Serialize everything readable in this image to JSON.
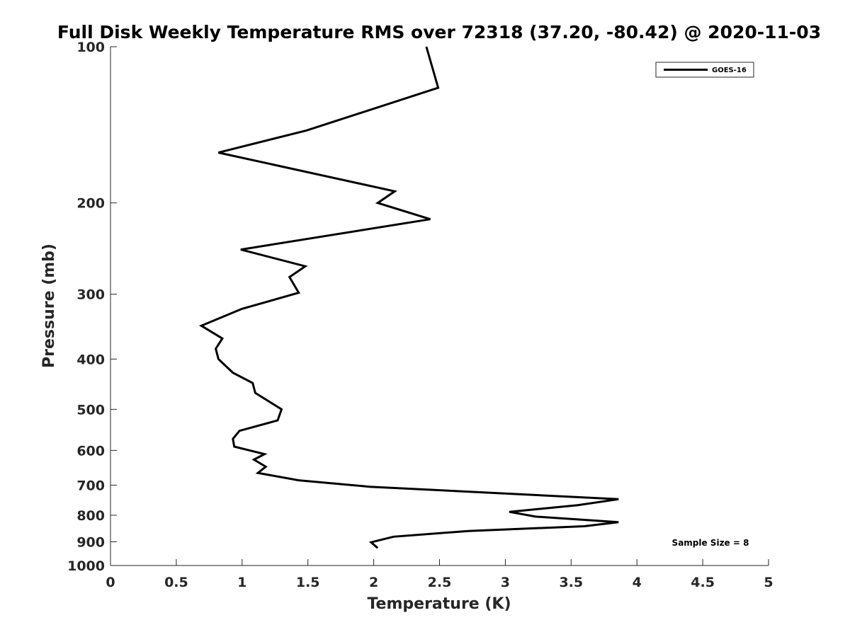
{
  "chart_data": {
    "type": "line",
    "title": "Full Disk Weekly Temperature RMS over 72318 (37.20, -80.42) @ 2020-11-03",
    "xlabel": "Temperature (K)",
    "ylabel": "Pressure (mb)",
    "xlim": [
      0,
      5
    ],
    "ylim": [
      100,
      1000
    ],
    "y_scale": "log",
    "y_reversed": true,
    "x_ticks": [
      0,
      0.5,
      1,
      1.5,
      2,
      2.5,
      3,
      3.5,
      4,
      4.5,
      5
    ],
    "x_tick_labels": [
      "0",
      "0.5",
      "1",
      "1.5",
      "2",
      "2.5",
      "3",
      "3.5",
      "4",
      "4.5",
      "5"
    ],
    "y_ticks": [
      100,
      200,
      300,
      400,
      500,
      600,
      700,
      800,
      900,
      1000
    ],
    "y_tick_labels": [
      "100",
      "200",
      "300",
      "400",
      "500",
      "600",
      "700",
      "800",
      "900",
      "1000"
    ],
    "grid": false,
    "legend_position": "top-right",
    "annotation": "Sample Size = 8",
    "series": [
      {
        "name": "GOES-16",
        "color": "#000000",
        "points": [
          {
            "x": 2.4,
            "p": 100
          },
          {
            "x": 2.49,
            "p": 120
          },
          {
            "x": 1.49,
            "p": 145
          },
          {
            "x": 0.82,
            "p": 160
          },
          {
            "x": 2.16,
            "p": 190
          },
          {
            "x": 2.03,
            "p": 200
          },
          {
            "x": 2.43,
            "p": 215
          },
          {
            "x": 0.99,
            "p": 246
          },
          {
            "x": 1.48,
            "p": 265
          },
          {
            "x": 1.36,
            "p": 278
          },
          {
            "x": 1.43,
            "p": 298
          },
          {
            "x": 1.0,
            "p": 320
          },
          {
            "x": 0.69,
            "p": 345
          },
          {
            "x": 0.85,
            "p": 365
          },
          {
            "x": 0.8,
            "p": 382
          },
          {
            "x": 0.82,
            "p": 400
          },
          {
            "x": 0.93,
            "p": 425
          },
          {
            "x": 1.08,
            "p": 445
          },
          {
            "x": 1.1,
            "p": 465
          },
          {
            "x": 1.3,
            "p": 500
          },
          {
            "x": 1.27,
            "p": 525
          },
          {
            "x": 0.98,
            "p": 550
          },
          {
            "x": 0.93,
            "p": 570
          },
          {
            "x": 0.94,
            "p": 590
          },
          {
            "x": 1.17,
            "p": 610
          },
          {
            "x": 1.09,
            "p": 625
          },
          {
            "x": 1.18,
            "p": 645
          },
          {
            "x": 1.12,
            "p": 663
          },
          {
            "x": 1.43,
            "p": 685
          },
          {
            "x": 1.97,
            "p": 705
          },
          {
            "x": 3.86,
            "p": 745
          },
          {
            "x": 3.55,
            "p": 765
          },
          {
            "x": 3.03,
            "p": 788
          },
          {
            "x": 3.23,
            "p": 805
          },
          {
            "x": 3.86,
            "p": 825
          },
          {
            "x": 3.6,
            "p": 840
          },
          {
            "x": 2.72,
            "p": 858
          },
          {
            "x": 2.15,
            "p": 880
          },
          {
            "x": 1.98,
            "p": 902
          },
          {
            "x": 2.03,
            "p": 925
          }
        ]
      }
    ]
  }
}
